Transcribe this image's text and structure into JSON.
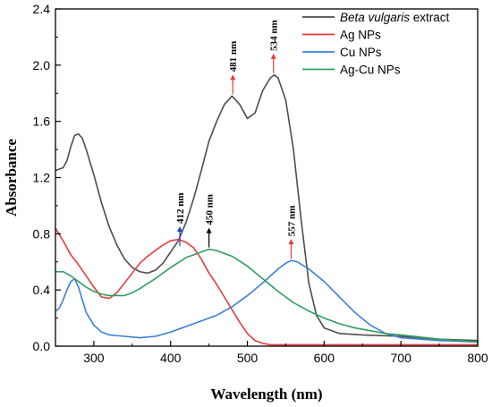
{
  "chart_data": {
    "type": "line",
    "xlabel": "Wavelength (nm)",
    "ylabel": "Absorbance",
    "xlim": [
      250,
      800
    ],
    "ylim": [
      0,
      2.4
    ],
    "x_ticks": [
      300,
      400,
      500,
      600,
      700,
      800
    ],
    "y_ticks": [
      0.0,
      0.4,
      0.8,
      1.2,
      1.6,
      2.0,
      2.4
    ],
    "y_tick_labels": [
      "0.0",
      "0.4",
      "0.8",
      "1.2",
      "1.6",
      "2.0",
      "2.4"
    ],
    "grid": false,
    "legend_position": "top-right",
    "series": [
      {
        "name_parts": [
          {
            "text": "Beta vulgaris",
            "italic": true
          },
          {
            "text": " extract",
            "italic": false
          }
        ],
        "color": "#4d4d4d",
        "x": [
          250,
          260,
          265,
          270,
          275,
          280,
          285,
          290,
          300,
          310,
          320,
          330,
          340,
          350,
          360,
          370,
          380,
          390,
          400,
          410,
          420,
          430,
          440,
          450,
          460,
          470,
          480,
          490,
          500,
          510,
          520,
          530,
          535,
          540,
          550,
          560,
          570,
          580,
          590,
          600,
          620,
          650,
          700,
          750,
          800
        ],
        "y": [
          1.25,
          1.27,
          1.32,
          1.42,
          1.5,
          1.51,
          1.48,
          1.4,
          1.22,
          1.02,
          0.85,
          0.72,
          0.62,
          0.56,
          0.53,
          0.52,
          0.54,
          0.59,
          0.67,
          0.75,
          0.88,
          1.05,
          1.25,
          1.46,
          1.6,
          1.72,
          1.78,
          1.72,
          1.62,
          1.66,
          1.82,
          1.91,
          1.93,
          1.91,
          1.75,
          1.4,
          0.9,
          0.45,
          0.22,
          0.13,
          0.09,
          0.08,
          0.07,
          0.05,
          0.04
        ]
      },
      {
        "name": "Ag NPs",
        "color": "#e8393b",
        "x": [
          250,
          260,
          270,
          280,
          290,
          300,
          310,
          320,
          330,
          340,
          350,
          360,
          370,
          380,
          390,
          400,
          410,
          420,
          430,
          440,
          450,
          460,
          470,
          480,
          490,
          500,
          510,
          520,
          530,
          550,
          600,
          700,
          800
        ],
        "y": [
          0.84,
          0.75,
          0.65,
          0.58,
          0.5,
          0.42,
          0.35,
          0.34,
          0.38,
          0.45,
          0.52,
          0.59,
          0.64,
          0.68,
          0.72,
          0.75,
          0.76,
          0.74,
          0.7,
          0.62,
          0.52,
          0.44,
          0.35,
          0.26,
          0.17,
          0.09,
          0.04,
          0.02,
          0.01,
          0.01,
          0.01,
          0.01,
          0.01
        ]
      },
      {
        "name": "Cu NPs",
        "color": "#3a7fd5",
        "x": [
          250,
          255,
          260,
          265,
          270,
          275,
          280,
          285,
          290,
          300,
          310,
          320,
          340,
          360,
          380,
          400,
          420,
          440,
          460,
          480,
          500,
          520,
          540,
          550,
          557,
          565,
          580,
          600,
          620,
          640,
          660,
          680,
          700,
          750,
          800
        ],
        "y": [
          0.25,
          0.27,
          0.33,
          0.4,
          0.46,
          0.48,
          0.42,
          0.33,
          0.24,
          0.15,
          0.1,
          0.08,
          0.07,
          0.06,
          0.07,
          0.1,
          0.14,
          0.18,
          0.22,
          0.28,
          0.36,
          0.45,
          0.55,
          0.59,
          0.61,
          0.6,
          0.55,
          0.46,
          0.35,
          0.24,
          0.15,
          0.09,
          0.06,
          0.04,
          0.03
        ]
      },
      {
        "name": "Ag-Cu NPs",
        "color": "#2f9e5e",
        "x": [
          250,
          260,
          270,
          280,
          290,
          300,
          310,
          320,
          330,
          340,
          350,
          360,
          380,
          400,
          420,
          440,
          450,
          460,
          480,
          500,
          520,
          540,
          560,
          580,
          600,
          620,
          640,
          660,
          680,
          700,
          750,
          800
        ],
        "y": [
          0.53,
          0.53,
          0.5,
          0.46,
          0.42,
          0.39,
          0.37,
          0.36,
          0.36,
          0.36,
          0.38,
          0.41,
          0.48,
          0.56,
          0.63,
          0.67,
          0.69,
          0.68,
          0.64,
          0.57,
          0.48,
          0.39,
          0.31,
          0.25,
          0.2,
          0.16,
          0.13,
          0.11,
          0.09,
          0.08,
          0.05,
          0.03
        ]
      }
    ],
    "annotations": [
      {
        "text": "412 nm",
        "x": 412,
        "y": 0.7,
        "arrow_color": "#1a3fcf"
      },
      {
        "text": "450 nm",
        "x": 450,
        "y": 0.69,
        "arrow_color": "#000000"
      },
      {
        "text": "481 nm",
        "x": 481,
        "y": 1.78,
        "arrow_color": "#e8393b"
      },
      {
        "text": "534 nm",
        "x": 534,
        "y": 1.93,
        "arrow_color": "#e8393b"
      },
      {
        "text": "557 nm",
        "x": 557,
        "y": 0.61,
        "arrow_color": "#e8393b"
      }
    ]
  }
}
